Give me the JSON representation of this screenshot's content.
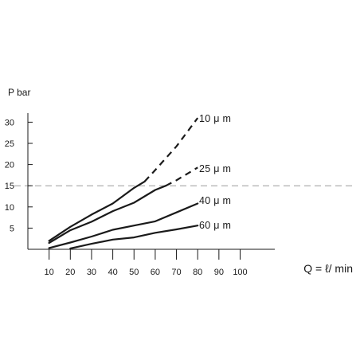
{
  "chart_data": {
    "type": "line",
    "ylabel": "P bar",
    "xlabel": "Q = ℓ/ min",
    "xlim": [
      0,
      100
    ],
    "ylim": [
      0,
      30
    ],
    "x_ticks": [
      10,
      20,
      30,
      40,
      50,
      60,
      70,
      80,
      90,
      100
    ],
    "y_ticks": [
      5,
      10,
      15,
      20,
      25,
      30
    ],
    "reference_line": {
      "y": 15,
      "style": "dashed"
    },
    "series": [
      {
        "name": "10 μ m",
        "x": [
          10,
          20,
          30,
          40,
          50,
          55,
          60,
          70,
          80
        ],
        "y": [
          2,
          5.3,
          8.2,
          10.8,
          14.5,
          16,
          18.7,
          24.3,
          31
        ],
        "dashed_from_x": 55
      },
      {
        "name": "25 μ m",
        "x": [
          10,
          20,
          30,
          40,
          50,
          60,
          65,
          70,
          80
        ],
        "y": [
          1.5,
          4.5,
          6.5,
          9,
          11,
          14,
          15,
          16.3,
          19.3
        ],
        "dashed_from_x": 65
      },
      {
        "name": "40 μ m",
        "x": [
          10,
          20,
          30,
          40,
          50,
          60,
          70,
          80
        ],
        "y": [
          0.3,
          1.6,
          3,
          4.6,
          5.6,
          6.6,
          8.7,
          10.8
        ]
      },
      {
        "name": "60 μ m",
        "x": [
          20,
          30,
          40,
          50,
          60,
          70,
          80
        ],
        "y": [
          0.2,
          1.3,
          2.3,
          2.8,
          3.9,
          4.7,
          5.6
        ]
      }
    ]
  }
}
